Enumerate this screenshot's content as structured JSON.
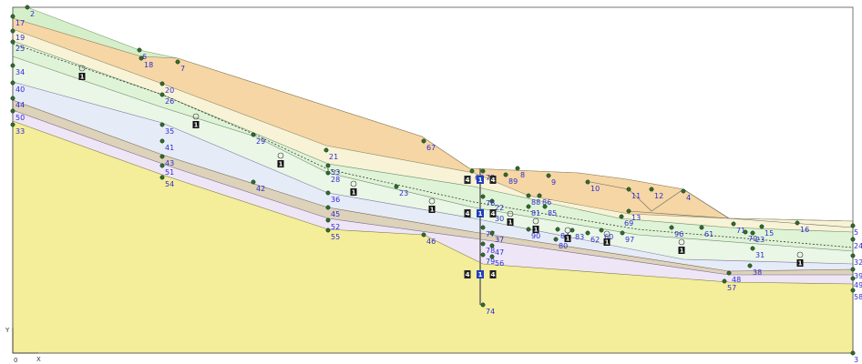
{
  "axes": {
    "x": "X",
    "y": "Y",
    "origin": "0"
  },
  "nodes": [
    "2",
    "17",
    "19",
    "25",
    "34",
    "40",
    "44",
    "50",
    "33",
    "5",
    "24",
    "32",
    "39",
    "49",
    "58",
    "3",
    "6",
    "18",
    "7",
    "20",
    "26",
    "35",
    "41",
    "43",
    "51",
    "54",
    "29",
    "42",
    "21",
    "53",
    "28",
    "36",
    "45",
    "52",
    "55",
    "23",
    "46",
    "67",
    "66",
    "73",
    "8",
    "89",
    "9",
    "10",
    "11",
    "12",
    "4",
    "22",
    "76",
    "30",
    "77",
    "37",
    "78",
    "47",
    "79",
    "56",
    "74",
    "88",
    "86",
    "81",
    "85",
    "90",
    "80",
    "83",
    "84",
    "62",
    "97",
    "60",
    "13",
    "69",
    "96",
    "61",
    "71",
    "70",
    "15",
    "16",
    "23",
    "31",
    "38",
    "48",
    "57"
  ],
  "markers": [
    "1",
    "1",
    "1",
    "1",
    "1",
    "1",
    "1",
    "1",
    "1",
    "1",
    "1"
  ],
  "well_markers": [
    "1",
    "1",
    "1"
  ],
  "well_side_labels": [
    "4",
    "4",
    "4",
    "4",
    "4",
    "4"
  ]
}
